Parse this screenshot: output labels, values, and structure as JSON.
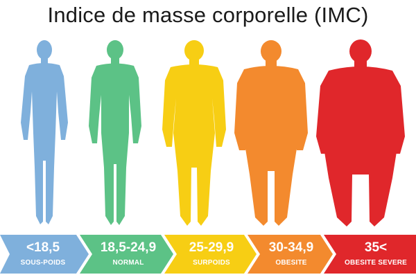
{
  "title": "Indice de masse corporelle (IMC)",
  "categories": [
    {
      "range": "<18,5",
      "label": "SOUS-POIDS",
      "color": "#7fb0dc"
    },
    {
      "range": "18,5-24,9",
      "label": "NORMAL",
      "color": "#5cc286"
    },
    {
      "range": "25-29,9",
      "label": "SURPOIDS",
      "color": "#f7ce14"
    },
    {
      "range": "30-34,9",
      "label": "OBESITE",
      "color": "#f38a2e"
    },
    {
      "range": "35<",
      "label": "OBESITE SEVERE",
      "color": "#e0272b"
    }
  ]
}
